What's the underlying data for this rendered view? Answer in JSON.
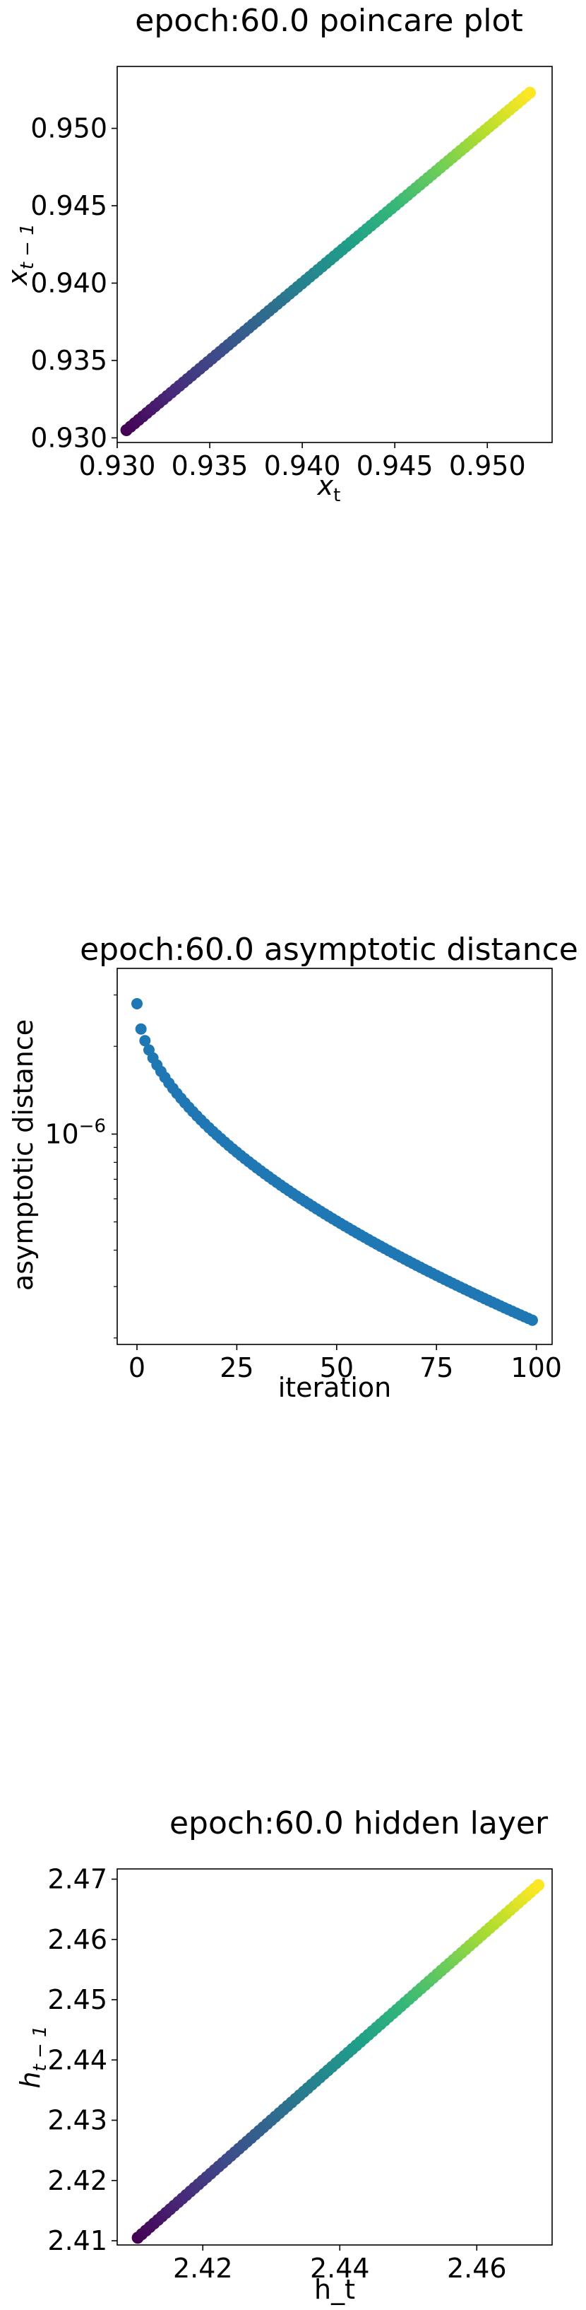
{
  "chart_data": [
    {
      "type": "scatter",
      "title": "epoch:60.0 poincare plot",
      "xlabel": "x_t",
      "ylabel": "x_{t-1}",
      "xlim": [
        0.93,
        0.9535
      ],
      "ylim": [
        0.9297,
        0.954
      ],
      "xticks": [
        0.93,
        0.935,
        0.94,
        0.945,
        0.95
      ],
      "yticks": [
        0.93,
        0.935,
        0.94,
        0.945,
        0.95
      ],
      "xtick_labels": [
        "0.930",
        "0.935",
        "0.940",
        "0.945",
        "0.950"
      ],
      "ytick_labels": [
        "0.930",
        "0.935",
        "0.940",
        "0.945",
        "0.950"
      ],
      "colormap": "viridis",
      "series": [
        {
          "name": "x",
          "start": 0.9305,
          "end": 0.9523,
          "n_points": 100
        }
      ]
    },
    {
      "type": "scatter",
      "title": "epoch:60.0 asymptotic distance",
      "xlabel": "iteration",
      "ylabel": "asymptotic distance",
      "yscale": "log",
      "xlim": [
        -4.95,
        103.95
      ],
      "ylim": [
        1.9e-07,
        3.7e-06
      ],
      "xticks": [
        0,
        25,
        50,
        75,
        100
      ],
      "xtick_labels": [
        "0",
        "25",
        "50",
        "75",
        "100"
      ],
      "ytick_labels": [
        "10",
        "−6"
      ],
      "ytick_values": [
        1e-06
      ],
      "color": "#1f77b4",
      "series": [
        {
          "name": "distance",
          "first": 2.8e-06,
          "last": 2.3e-07,
          "n_points": 100
        }
      ]
    },
    {
      "type": "scatter",
      "title": "epoch:60.0 hidden layer",
      "xlabel": "h_t",
      "ylabel": "h_{t-1}",
      "xlim": [
        2.4075,
        2.471
      ],
      "ylim": [
        2.4093,
        2.4717
      ],
      "xticks": [
        2.42,
        2.44,
        2.46
      ],
      "yticks": [
        2.41,
        2.42,
        2.43,
        2.44,
        2.45,
        2.46,
        2.47
      ],
      "xtick_labels": [
        "2.42",
        "2.44",
        "2.46"
      ],
      "ytick_labels": [
        "2.41",
        "2.42",
        "2.43",
        "2.44",
        "2.45",
        "2.46",
        "2.47"
      ],
      "colormap": "viridis",
      "series": [
        {
          "name": "h",
          "start": 2.4105,
          "end": 2.469,
          "n_points": 100
        }
      ]
    }
  ],
  "labels": {
    "p1_xlabel_main": "x",
    "p1_xlabel_sub": "t",
    "p1_ylabel_main": "x",
    "p1_ylabel_sub": "t − 1",
    "p3_ylabel_main": "h",
    "p3_ylabel_sub": "t − 1"
  }
}
